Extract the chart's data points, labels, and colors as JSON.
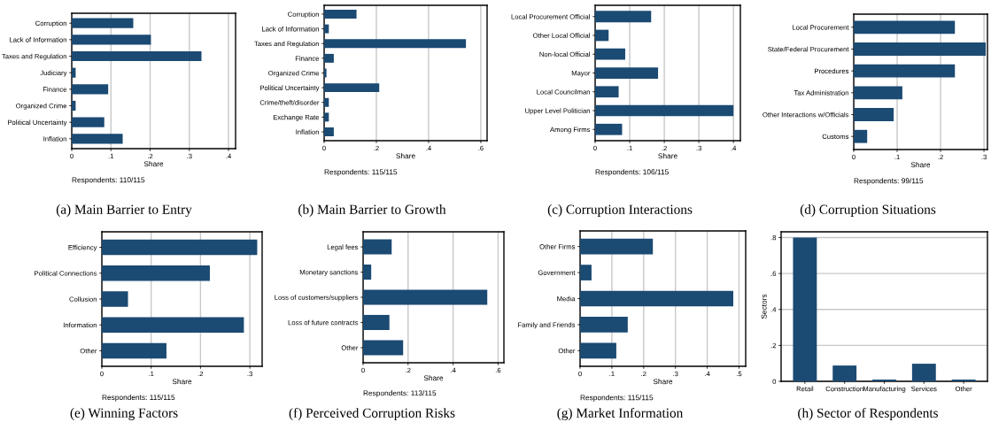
{
  "chart_data": [
    {
      "type": "bar",
      "orientation": "horizontal",
      "title": "(a) Main Barrier to Entry",
      "xlabel": "Share",
      "annotations": [
        "Respondents: 110/115"
      ],
      "color": "#1b4a73",
      "grid": "x",
      "categories": [
        "Corruption",
        "Lack of Information",
        "Taxes and Regulation",
        "Judiciary",
        "Finance",
        "Organized Crime",
        "Political Uncertainty",
        "Inflation"
      ],
      "values": [
        0.157,
        0.202,
        0.331,
        0.01,
        0.093,
        0.01,
        0.083,
        0.13
      ],
      "xlim": [
        0,
        0.418
      ],
      "xticks": [
        0,
        {
          "value": 0.1,
          "label": ".1"
        },
        {
          "value": 0.2,
          "label": ".2"
        },
        {
          "value": 0.3,
          "label": ".3"
        },
        {
          "value": 0.4,
          "label": ".4"
        }
      ]
    },
    {
      "type": "bar",
      "orientation": "horizontal",
      "title": "(b) Main Barrier to Growth",
      "xlabel": "Share",
      "annotations": [
        "Respondents: 115/115"
      ],
      "color": "#1b4a73",
      "grid": "x",
      "categories": [
        "Corruption",
        "Lack of Information",
        "Taxes and Regulation",
        "Finance",
        "Organized Crime",
        "Political Uncertainty",
        "Crime/theft/disorder",
        "Exchange Rate",
        "Inflation"
      ],
      "values": [
        0.124,
        0.018,
        0.543,
        0.037,
        0.009,
        0.211,
        0.018,
        0.018,
        0.037
      ],
      "xlim": [
        0,
        0.624
      ],
      "xticks": [
        0,
        {
          "value": 0.2,
          "label": ".2"
        },
        {
          "value": 0.4,
          "label": ".4"
        },
        {
          "value": 0.6,
          "label": ".6"
        }
      ]
    },
    {
      "type": "bar",
      "orientation": "horizontal",
      "title": "(c) Corruption Interactions",
      "xlabel": "Share",
      "annotations": [
        "Respondents: 106/115"
      ],
      "color": "#1b4a73",
      "grid": "x",
      "categories": [
        "Local Procurement Official",
        "Other Local Official",
        "Non-local Official",
        "Mayor",
        "Local Councilman",
        "Upper Level Politician",
        "Among Firms"
      ],
      "values": [
        0.162,
        0.039,
        0.087,
        0.182,
        0.068,
        0.4,
        0.078
      ],
      "xlim": [
        0,
        0.42
      ],
      "xticks": [
        0,
        {
          "value": 0.1,
          "label": ".1"
        },
        {
          "value": 0.2,
          "label": ".2"
        },
        {
          "value": 0.3,
          "label": ".3"
        },
        {
          "value": 0.4,
          "label": ".4"
        }
      ]
    },
    {
      "type": "bar",
      "orientation": "horizontal",
      "title": "(d) Corruption Situations",
      "xlabel": "Share",
      "annotations": [
        "Respondents: 99/115"
      ],
      "color": "#1b4a73",
      "grid": "x",
      "categories": [
        "Local Procurement",
        "State/Federal Procurement",
        "Procedures",
        "Tax Administration",
        "Other Interactions w/Officials",
        "Customs"
      ],
      "values": [
        0.233,
        0.304,
        0.233,
        0.112,
        0.092,
        0.031
      ],
      "xlim": [
        0,
        0.308
      ],
      "xticks": [
        0,
        {
          "value": 0.1,
          "label": ".1"
        },
        {
          "value": 0.2,
          "label": ".2"
        },
        {
          "value": 0.3,
          "label": ".3"
        }
      ]
    },
    {
      "type": "bar",
      "orientation": "horizontal",
      "title": "(e) Winning Factors",
      "xlabel": "Share",
      "annotations": [
        "Respondents: 115/115"
      ],
      "color": "#1b4a73",
      "grid": "x",
      "categories": [
        "Efficiency",
        "Political Connections",
        "Collusion",
        "Information",
        "Other"
      ],
      "values": [
        0.315,
        0.219,
        0.053,
        0.288,
        0.131
      ],
      "xlim": [
        0,
        0.325
      ],
      "xticks": [
        0,
        {
          "value": 0.1,
          "label": ".1"
        },
        {
          "value": 0.2,
          "label": ".2"
        },
        {
          "value": 0.3,
          "label": ".3"
        }
      ]
    },
    {
      "type": "bar",
      "orientation": "horizontal",
      "title": "(f) Perceived Corruption Risks",
      "xlabel": "Share",
      "annotations": [
        "Respondents: 113/115"
      ],
      "color": "#1b4a73",
      "grid": "x",
      "categories": [
        "Legal fees",
        "Monetary sanctions",
        "Loss of customers/suppliers",
        "Loss of future contracts",
        "Other"
      ],
      "values": [
        0.127,
        0.036,
        0.552,
        0.117,
        0.178
      ],
      "xlim": [
        0,
        0.626
      ],
      "xticks": [
        0,
        {
          "value": 0.2,
          "label": ".2"
        },
        {
          "value": 0.4,
          "label": ".4"
        },
        {
          "value": 0.6,
          "label": ".6"
        }
      ]
    },
    {
      "type": "bar",
      "orientation": "horizontal",
      "title": "(g) Market Information",
      "xlabel": "Share",
      "annotations": [
        "Respondents: 115/115"
      ],
      "color": "#1b4a73",
      "grid": "x",
      "categories": [
        "Other Firms",
        "Government",
        "Media",
        "Family and Friends",
        "Other"
      ],
      "values": [
        0.229,
        0.036,
        0.482,
        0.15,
        0.114
      ],
      "xlim": [
        0,
        0.521
      ],
      "xticks": [
        0,
        {
          "value": 0.1,
          "label": ".1"
        },
        {
          "value": 0.2,
          "label": ".2"
        },
        {
          "value": 0.3,
          "label": ".3"
        },
        {
          "value": 0.4,
          "label": ".4"
        },
        {
          "value": 0.5,
          "label": ".5"
        }
      ]
    },
    {
      "type": "bar",
      "title": "(h) Sector of Respondents",
      "ylabel": "Sectors",
      "color": "#1b4a73",
      "grid": "y",
      "categories": [
        "Retail",
        "Construction",
        "Manufacturing",
        "Services",
        "Other"
      ],
      "values": [
        0.8,
        0.088,
        0.01,
        0.098,
        0.01
      ],
      "ylim": [
        0,
        0.832
      ],
      "yticks": [
        0,
        {
          "value": 0.2,
          "label": ".2"
        },
        {
          "value": 0.4,
          "label": ".4"
        },
        {
          "value": 0.6,
          "label": ".6"
        },
        {
          "value": 0.8,
          "label": ".8"
        }
      ]
    }
  ]
}
